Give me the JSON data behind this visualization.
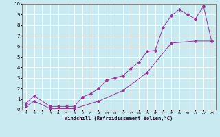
{
  "xlabel": "Windchill (Refroidissement éolien,°C)",
  "ylabel": "",
  "bg_color": "#c8eaf0",
  "line_color": "#993399",
  "grid_color": "#ffffff",
  "x_ticks": [
    0,
    1,
    2,
    3,
    4,
    5,
    6,
    7,
    8,
    9,
    10,
    11,
    12,
    13,
    14,
    15,
    16,
    17,
    18,
    19,
    20,
    21,
    22,
    23
  ],
  "y_ticks": [
    0,
    1,
    2,
    3,
    4,
    5,
    6,
    7,
    8,
    9,
    10
  ],
  "xlim": [
    -0.5,
    23.5
  ],
  "ylim": [
    0,
    10
  ],
  "line1_x": [
    0,
    1,
    3,
    4,
    5,
    6,
    7,
    8,
    9,
    10,
    11,
    12,
    13,
    14,
    15,
    16,
    17,
    18,
    19,
    20,
    21,
    22,
    23
  ],
  "line1_y": [
    0.6,
    1.3,
    0.3,
    0.3,
    0.3,
    0.3,
    1.2,
    1.5,
    2.0,
    2.8,
    3.0,
    3.2,
    3.9,
    4.5,
    5.5,
    5.6,
    7.8,
    8.9,
    9.5,
    9.0,
    8.6,
    9.8,
    6.5
  ],
  "line2_x": [
    0,
    1,
    3,
    6,
    9,
    12,
    15,
    18,
    21,
    23
  ],
  "line2_y": [
    0.3,
    0.8,
    0.1,
    0.1,
    0.8,
    1.8,
    3.5,
    6.3,
    6.5,
    6.5
  ]
}
